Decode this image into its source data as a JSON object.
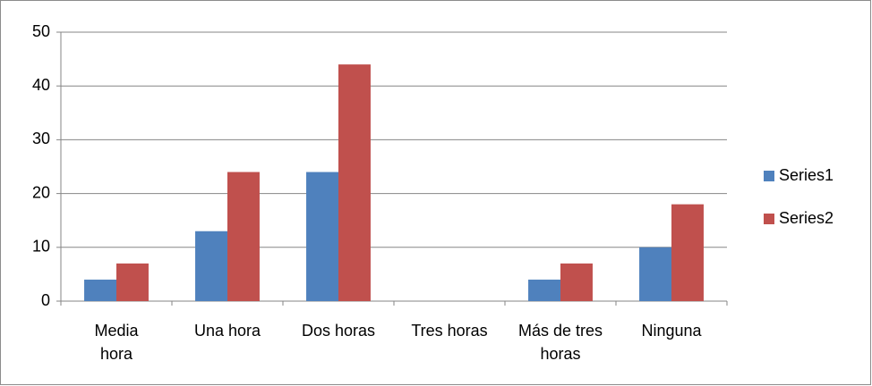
{
  "chart_data": {
    "type": "bar",
    "categories": [
      "Media hora",
      "Una hora",
      "Dos horas",
      "Tres horas",
      "Más de tres horas",
      "Ninguna"
    ],
    "series": [
      {
        "name": "Series1",
        "color": "#4f81bd",
        "values": [
          4,
          13,
          24,
          0,
          4,
          10
        ]
      },
      {
        "name": "Series2",
        "color": "#c0504d",
        "values": [
          7,
          24,
          44,
          0,
          7,
          18
        ]
      }
    ],
    "ylim": [
      0,
      50
    ],
    "yticks": [
      0,
      10,
      20,
      30,
      40,
      50
    ],
    "grid": true,
    "legend": "right"
  }
}
